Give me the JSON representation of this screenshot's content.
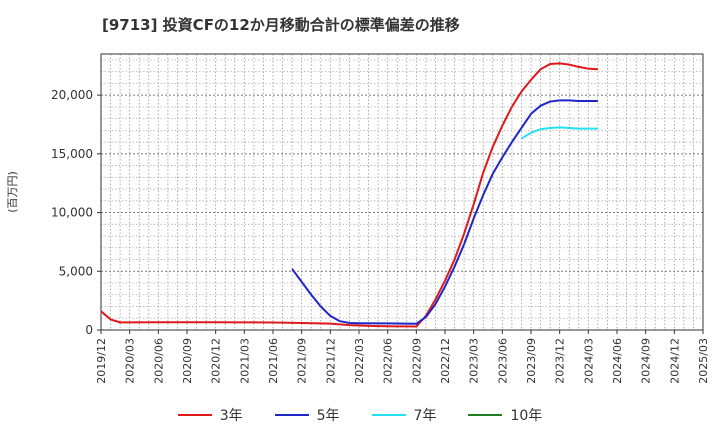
{
  "chart_data": {
    "type": "line",
    "title": "[9713]  投資CFの12か月移動合計の標準偏差の推移",
    "ylabel": "(百万円)",
    "xlabel": "",
    "ylim": [
      0,
      23500
    ],
    "yticks": [
      0,
      5000,
      10000,
      15000,
      20000
    ],
    "ytick_labels": [
      "0",
      "5,000",
      "10,000",
      "15,000",
      "20,000"
    ],
    "xticks": [
      "2019/12",
      "2020/03",
      "2020/06",
      "2020/09",
      "2020/12",
      "2021/03",
      "2021/06",
      "2021/09",
      "2021/12",
      "2022/03",
      "2022/06",
      "2022/09",
      "2022/12",
      "2023/03",
      "2023/06",
      "2023/09",
      "2023/12",
      "2024/03",
      "2024/06",
      "2024/09",
      "2024/12",
      "2025/03"
    ],
    "grid": true,
    "legend_position": "bottom",
    "series": [
      {
        "name": "3年",
        "color": "#e0191b",
        "points": [
          [
            "2019/12",
            1600
          ],
          [
            "2020/01",
            900
          ],
          [
            "2020/02",
            650
          ],
          [
            "2020/03",
            650
          ],
          [
            "2020/06",
            660
          ],
          [
            "2020/09",
            660
          ],
          [
            "2020/12",
            660
          ],
          [
            "2021/03",
            650
          ],
          [
            "2021/06",
            640
          ],
          [
            "2021/09",
            600
          ],
          [
            "2021/12",
            540
          ],
          [
            "2022/01",
            480
          ],
          [
            "2022/02",
            420
          ],
          [
            "2022/03",
            380
          ],
          [
            "2022/04",
            350
          ],
          [
            "2022/05",
            330
          ],
          [
            "2022/06",
            320
          ],
          [
            "2022/07",
            310
          ],
          [
            "2022/08",
            310
          ],
          [
            "2022/09",
            300
          ],
          [
            "2022/10",
            1200
          ],
          [
            "2022/11",
            2600
          ],
          [
            "2022/12",
            4200
          ],
          [
            "2023/01",
            6000
          ],
          [
            "2023/02",
            8200
          ],
          [
            "2023/03",
            10700
          ],
          [
            "2023/04",
            13400
          ],
          [
            "2023/05",
            15600
          ],
          [
            "2023/06",
            17400
          ],
          [
            "2023/07",
            19000
          ],
          [
            "2023/08",
            20300
          ],
          [
            "2023/09",
            21300
          ],
          [
            "2023/10",
            22200
          ],
          [
            "2023/11",
            22650
          ],
          [
            "2023/12",
            22700
          ],
          [
            "2024/01",
            22600
          ],
          [
            "2024/02",
            22400
          ],
          [
            "2024/03",
            22250
          ],
          [
            "2024/04",
            22200
          ]
        ]
      },
      {
        "name": "5年",
        "color": "#1f26c8",
        "points": [
          [
            "2021/08",
            5200
          ],
          [
            "2021/09",
            4100
          ],
          [
            "2021/10",
            3000
          ],
          [
            "2021/11",
            2000
          ],
          [
            "2021/12",
            1200
          ],
          [
            "2022/01",
            750
          ],
          [
            "2022/02",
            600
          ],
          [
            "2022/03",
            580
          ],
          [
            "2022/06",
            560
          ],
          [
            "2022/09",
            530
          ],
          [
            "2022/10",
            1100
          ],
          [
            "2022/11",
            2200
          ],
          [
            "2022/12",
            3700
          ],
          [
            "2023/01",
            5400
          ],
          [
            "2023/02",
            7300
          ],
          [
            "2023/03",
            9500
          ],
          [
            "2023/04",
            11500
          ],
          [
            "2023/05",
            13300
          ],
          [
            "2023/06",
            14700
          ],
          [
            "2023/07",
            16000
          ],
          [
            "2023/08",
            17200
          ],
          [
            "2023/09",
            18400
          ],
          [
            "2023/10",
            19100
          ],
          [
            "2023/11",
            19450
          ],
          [
            "2023/12",
            19550
          ],
          [
            "2024/01",
            19550
          ],
          [
            "2024/02",
            19500
          ],
          [
            "2024/03",
            19500
          ],
          [
            "2024/04",
            19500
          ]
        ]
      },
      {
        "name": "7年",
        "color": "#25e0ee",
        "points": [
          [
            "2023/08",
            16300
          ],
          [
            "2023/09",
            16800
          ],
          [
            "2023/10",
            17100
          ],
          [
            "2023/11",
            17200
          ],
          [
            "2023/12",
            17250
          ],
          [
            "2024/01",
            17200
          ],
          [
            "2024/02",
            17150
          ],
          [
            "2024/03",
            17150
          ],
          [
            "2024/04",
            17150
          ]
        ]
      },
      {
        "name": "10年",
        "color": "#1f7d22",
        "points": []
      }
    ]
  }
}
